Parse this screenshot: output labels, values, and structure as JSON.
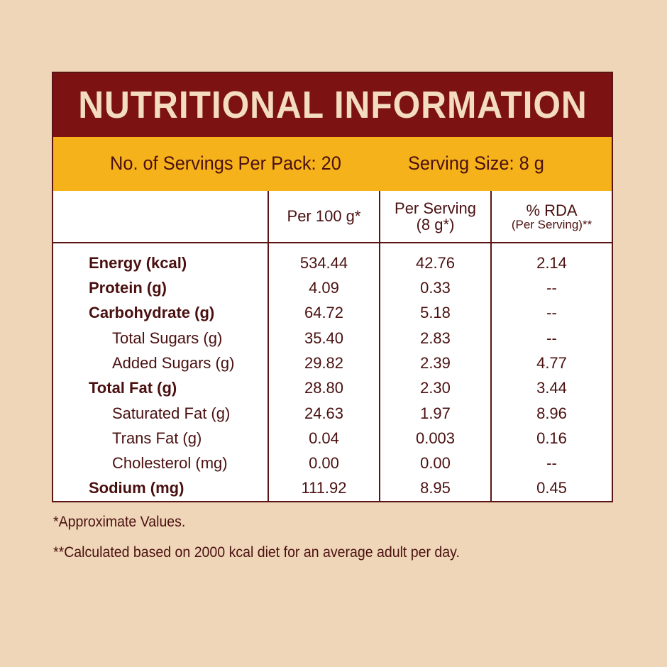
{
  "title": "NUTRITIONAL INFORMATION",
  "serving_info": {
    "servings_per_pack": "No. of Servings Per Pack: 20",
    "serving_size": "Serving Size: 8 g"
  },
  "columns": {
    "per_100g": "Per 100 g*",
    "per_serving_line1": "Per Serving",
    "per_serving_line2": "(8 g*)",
    "rda_line1": "% RDA",
    "rda_line2": "(Per Serving)**"
  },
  "rows": [
    {
      "label": "Energy (kcal)",
      "per_100g": "534.44",
      "per_serving": "42.76",
      "rda": "2.14"
    },
    {
      "label": "Protein (g)",
      "per_100g": "4.09",
      "per_serving": "0.33",
      "rda": "--"
    },
    {
      "label": "Carbohydrate (g)",
      "per_100g": "64.72",
      "per_serving": "5.18",
      "rda": "--"
    },
    {
      "label": "Total Sugars (g)",
      "per_100g": "35.40",
      "per_serving": "2.83",
      "rda": "--"
    },
    {
      "label": "Added Sugars (g)",
      "per_100g": "29.82",
      "per_serving": "2.39",
      "rda": "4.77"
    },
    {
      "label": "Total Fat (g)",
      "per_100g": "28.80",
      "per_serving": "2.30",
      "rda": "3.44"
    },
    {
      "label": "Saturated Fat (g)",
      "per_100g": "24.63",
      "per_serving": "1.97",
      "rda": "8.96"
    },
    {
      "label": "Trans Fat (g)",
      "per_100g": "0.04",
      "per_serving": "0.003",
      "rda": "0.16"
    },
    {
      "label": "Cholesterol (mg)",
      "per_100g": "0.00",
      "per_serving": "0.00",
      "rda": "--"
    },
    {
      "label": "Sodium (mg)",
      "per_100g": "111.92",
      "per_serving": "8.95",
      "rda": "0.45"
    }
  ],
  "footnotes": {
    "approx": "*Approximate Values.",
    "calc": "**Calculated based on 2000 kcal diet for an average adult per day."
  },
  "colors": {
    "background": "#f0d6b8",
    "title_bar": "#7c1212",
    "serving_bar": "#f6b21b",
    "text": "#4a1010"
  }
}
